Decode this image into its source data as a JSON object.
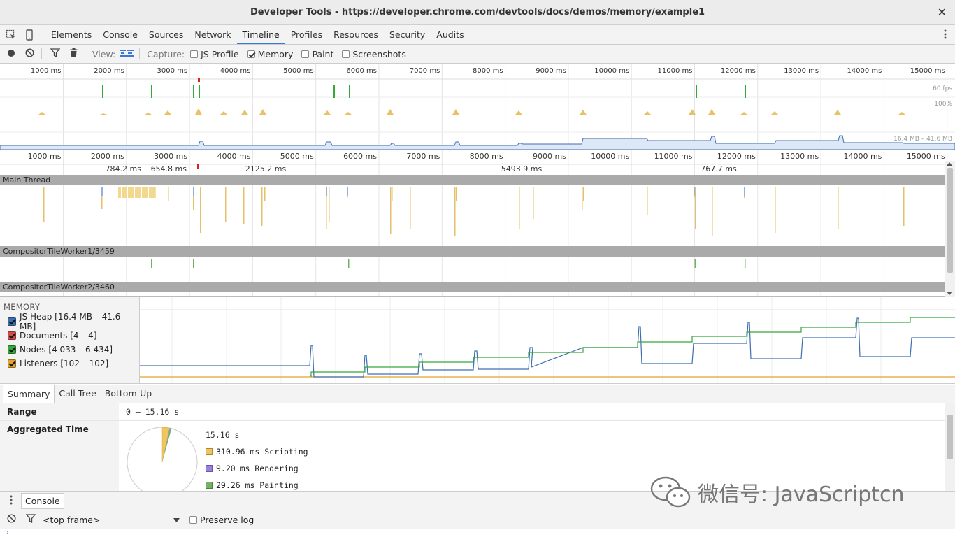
{
  "window": {
    "title": "Developer Tools - https://developer.chrome.com/devtools/docs/demos/memory/example1"
  },
  "tabs": [
    "Elements",
    "Console",
    "Sources",
    "Network",
    "Timeline",
    "Profiles",
    "Resources",
    "Security",
    "Audits"
  ],
  "active_tab": "Timeline",
  "toolbar": {
    "view_label": "View:",
    "capture_label": "Capture:",
    "js_profile_label": "JS Profile",
    "memory_label": "Memory",
    "paint_label": "Paint",
    "screenshots_label": "Screenshots"
  },
  "timeline": {
    "ticks": [
      "1000 ms",
      "2000 ms",
      "3000 ms",
      "4000 ms",
      "5000 ms",
      "6000 ms",
      "7000 ms",
      "8000 ms",
      "9000 ms",
      "10000 ms",
      "11000 ms",
      "12000 ms",
      "13000 ms",
      "14000 ms",
      "15000 ms"
    ],
    "fps_label": "60 fps",
    "cpu_label": "100%",
    "heap_label": "16.4 MB – 41.6 MB",
    "frame_durations": [
      "784.2 ms",
      "654.8 ms",
      "2125.2 ms",
      "5493.9 ms",
      "767.7 ms"
    ]
  },
  "threads": {
    "main": "Main Thread",
    "worker1": "CompositorTileWorker1/3459",
    "worker2": "CompositorTileWorker2/3460"
  },
  "memory": {
    "header": "MEMORY",
    "items": [
      {
        "label": "JS Heap [16.4 MB – 41.6 MB]",
        "color": "#3e6fb3",
        "checked": true
      },
      {
        "label": "Documents [4 – 4]",
        "color": "#d24c4c",
        "checked": true
      },
      {
        "label": "Nodes [4 033 – 6 434]",
        "color": "#35a839",
        "checked": true
      },
      {
        "label": "Listeners [102 – 102]",
        "color": "#e0a32e",
        "checked": true
      }
    ]
  },
  "summary_tabs": [
    "Summary",
    "Call Tree",
    "Bottom-Up"
  ],
  "summary": {
    "range_label": "Range",
    "range_value": "0 – 15.16 s",
    "aggregated_label": "Aggregated Time",
    "total": "15.16 s",
    "legend": [
      {
        "label": "310.96 ms Scripting",
        "color": "#f2c55c"
      },
      {
        "label": "9.20 ms Rendering",
        "color": "#9a7ee6"
      },
      {
        "label": "29.26 ms Painting",
        "color": "#71b363"
      }
    ]
  },
  "drawer": {
    "tab": "Console",
    "frame_select": "<top frame>",
    "preserve_log": "Preserve log"
  },
  "watermark": {
    "text": "微信号: JavaScriptcn"
  }
}
